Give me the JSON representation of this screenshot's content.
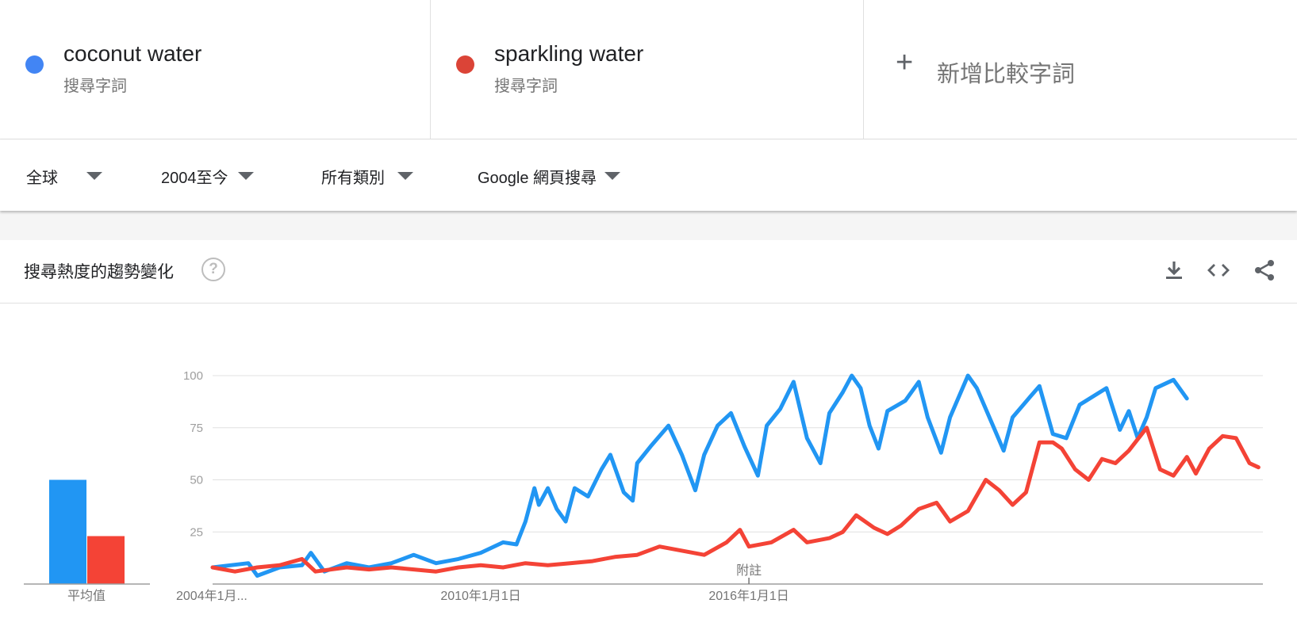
{
  "terms": [
    {
      "name": "coconut water",
      "sub": "搜尋字詞",
      "color": "#4285f4"
    },
    {
      "name": "sparkling water",
      "sub": "搜尋字詞",
      "color": "#db4437"
    }
  ],
  "add_term": {
    "plus": "+",
    "label": "新增比較字詞"
  },
  "filters": {
    "region": "全球",
    "time": "2004至今",
    "category": "所有類別",
    "search_type": "Google 網頁搜尋"
  },
  "card": {
    "title": "搜尋熱度的趨勢變化",
    "help": "?"
  },
  "icons": {
    "download": "download-icon",
    "embed": "embed-code-icon",
    "share": "share-icon",
    "help": "help-circle-icon"
  },
  "chart_data": {
    "type": "line",
    "y_ticks": [
      "100",
      "75",
      "50",
      "25"
    ],
    "ylim": [
      0,
      100
    ],
    "x_labels": [
      "2004年1月...",
      "2010年1月1日",
      "2016年1月1日"
    ],
    "annotation": {
      "label": "附註",
      "x": 2016.0
    },
    "average_label": "平均值",
    "averages": [
      50,
      23
    ],
    "series": [
      {
        "color": "#2196f3",
        "points": [
          [
            2004.0,
            8
          ],
          [
            2004.4,
            9
          ],
          [
            2004.8,
            10
          ],
          [
            2005.0,
            4
          ],
          [
            2005.5,
            8
          ],
          [
            2006.0,
            9
          ],
          [
            2006.2,
            15
          ],
          [
            2006.5,
            6
          ],
          [
            2007.0,
            10
          ],
          [
            2007.5,
            8
          ],
          [
            2008.0,
            10
          ],
          [
            2008.5,
            14
          ],
          [
            2009.0,
            10
          ],
          [
            2009.5,
            12
          ],
          [
            2010.0,
            15
          ],
          [
            2010.5,
            20
          ],
          [
            2010.8,
            19
          ],
          [
            2011.0,
            30
          ],
          [
            2011.2,
            46
          ],
          [
            2011.3,
            38
          ],
          [
            2011.5,
            46
          ],
          [
            2011.7,
            36
          ],
          [
            2011.9,
            30
          ],
          [
            2012.1,
            46
          ],
          [
            2012.4,
            42
          ],
          [
            2012.7,
            55
          ],
          [
            2012.9,
            62
          ],
          [
            2013.2,
            44
          ],
          [
            2013.4,
            40
          ],
          [
            2013.5,
            58
          ],
          [
            2013.8,
            66
          ],
          [
            2014.2,
            76
          ],
          [
            2014.5,
            62
          ],
          [
            2014.8,
            45
          ],
          [
            2015.0,
            62
          ],
          [
            2015.3,
            76
          ],
          [
            2015.6,
            82
          ],
          [
            2015.9,
            66
          ],
          [
            2016.2,
            52
          ],
          [
            2016.4,
            76
          ],
          [
            2016.7,
            84
          ],
          [
            2017.0,
            97
          ],
          [
            2017.3,
            70
          ],
          [
            2017.6,
            58
          ],
          [
            2017.8,
            82
          ],
          [
            2018.1,
            92
          ],
          [
            2018.3,
            100
          ],
          [
            2018.5,
            94
          ],
          [
            2018.7,
            76
          ],
          [
            2018.9,
            65
          ],
          [
            2019.1,
            83
          ],
          [
            2019.5,
            88
          ],
          [
            2019.8,
            97
          ],
          [
            2020.0,
            80
          ],
          [
            2020.3,
            63
          ],
          [
            2020.5,
            80
          ],
          [
            2020.9,
            100
          ],
          [
            2021.1,
            94
          ],
          [
            2021.5,
            74
          ],
          [
            2021.7,
            64
          ],
          [
            2021.9,
            80
          ],
          [
            2022.3,
            90
          ],
          [
            2022.5,
            95
          ],
          [
            2022.8,
            72
          ],
          [
            2023.1,
            70
          ],
          [
            2023.4,
            86
          ],
          [
            2023.7,
            90
          ],
          [
            2024.0,
            94
          ],
          [
            2024.3,
            74
          ],
          [
            2024.5,
            83
          ],
          [
            2024.7,
            70
          ],
          [
            2024.9,
            80
          ],
          [
            2025.1,
            94
          ],
          [
            2025.5,
            98
          ],
          [
            2025.8,
            89
          ]
        ]
      },
      {
        "color": "#f44336",
        "points": [
          [
            2004.0,
            8
          ],
          [
            2004.5,
            6
          ],
          [
            2005.0,
            8
          ],
          [
            2005.5,
            9
          ],
          [
            2006.0,
            12
          ],
          [
            2006.3,
            6
          ],
          [
            2007.0,
            8
          ],
          [
            2007.5,
            7
          ],
          [
            2008.0,
            8
          ],
          [
            2008.5,
            7
          ],
          [
            2009.0,
            6
          ],
          [
            2009.5,
            8
          ],
          [
            2010.0,
            9
          ],
          [
            2010.5,
            8
          ],
          [
            2011.0,
            10
          ],
          [
            2011.5,
            9
          ],
          [
            2012.0,
            10
          ],
          [
            2012.5,
            11
          ],
          [
            2013.0,
            13
          ],
          [
            2013.5,
            14
          ],
          [
            2014.0,
            18
          ],
          [
            2014.5,
            16
          ],
          [
            2015.0,
            14
          ],
          [
            2015.5,
            20
          ],
          [
            2015.8,
            26
          ],
          [
            2016.0,
            18
          ],
          [
            2016.5,
            20
          ],
          [
            2017.0,
            26
          ],
          [
            2017.3,
            20
          ],
          [
            2017.8,
            22
          ],
          [
            2018.1,
            25
          ],
          [
            2018.4,
            33
          ],
          [
            2018.8,
            27
          ],
          [
            2019.1,
            24
          ],
          [
            2019.4,
            28
          ],
          [
            2019.8,
            36
          ],
          [
            2020.2,
            39
          ],
          [
            2020.5,
            30
          ],
          [
            2020.9,
            35
          ],
          [
            2021.3,
            50
          ],
          [
            2021.6,
            45
          ],
          [
            2021.9,
            38
          ],
          [
            2022.2,
            44
          ],
          [
            2022.5,
            68
          ],
          [
            2022.8,
            68
          ],
          [
            2023.0,
            65
          ],
          [
            2023.3,
            55
          ],
          [
            2023.6,
            50
          ],
          [
            2023.9,
            60
          ],
          [
            2024.2,
            58
          ],
          [
            2024.5,
            64
          ],
          [
            2024.9,
            75
          ],
          [
            2025.2,
            55
          ],
          [
            2025.5,
            52
          ],
          [
            2025.8,
            61
          ],
          [
            2026.0,
            53
          ],
          [
            2026.3,
            65
          ],
          [
            2026.6,
            71
          ],
          [
            2026.9,
            70
          ],
          [
            2027.2,
            58
          ],
          [
            2027.4,
            56
          ]
        ]
      }
    ]
  }
}
